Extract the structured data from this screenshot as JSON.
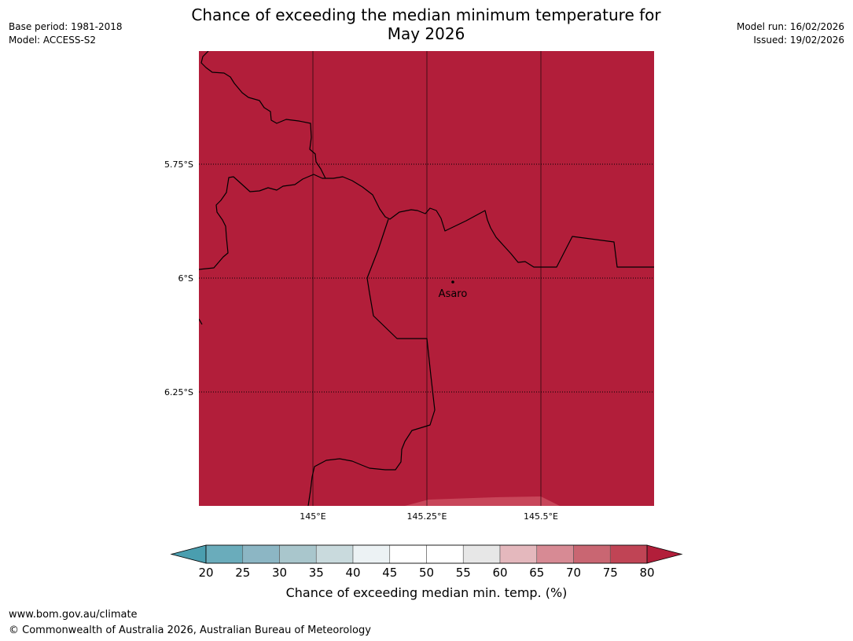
{
  "header": {
    "base_period": "Base period: 1981-2018",
    "model": "Model: ACCESS-S2",
    "model_run": "Model run: 16/02/2026",
    "issued": "Issued: 19/02/2026",
    "title_line1": "Chance of exceeding the median minimum temperature for",
    "title_line2": "May 2026"
  },
  "map": {
    "lat_labels": [
      "5.75°S",
      "6°S",
      "6.25°S"
    ],
    "lon_labels": [
      "145°E",
      "145.25°E",
      "145.5°E"
    ],
    "place_label": "Asaro",
    "fill_color": "#b21e3a",
    "lower_band_color": "#c8465a"
  },
  "colorbar": {
    "ticks": [
      "20",
      "25",
      "30",
      "35",
      "40",
      "45",
      "50",
      "55",
      "60",
      "65",
      "70",
      "75",
      "80"
    ],
    "colors": [
      "#6aacbb",
      "#8cb6c4",
      "#a9c6cc",
      "#c9dadd",
      "#ecf2f4",
      "#ffffff",
      "#ffffff",
      "#e7e7e7",
      "#e4b8bd",
      "#d78a94",
      "#c96672",
      "#c04455"
    ],
    "under_color": "#4a9eaf",
    "over_color": "#b21e3a",
    "label": "Chance of exceeding median min. temp. (%)"
  },
  "footer": {
    "url": "www.bom.gov.au/climate",
    "copyright": "© Commonwealth of Australia 2026, Australian Bureau of Meteorology"
  }
}
